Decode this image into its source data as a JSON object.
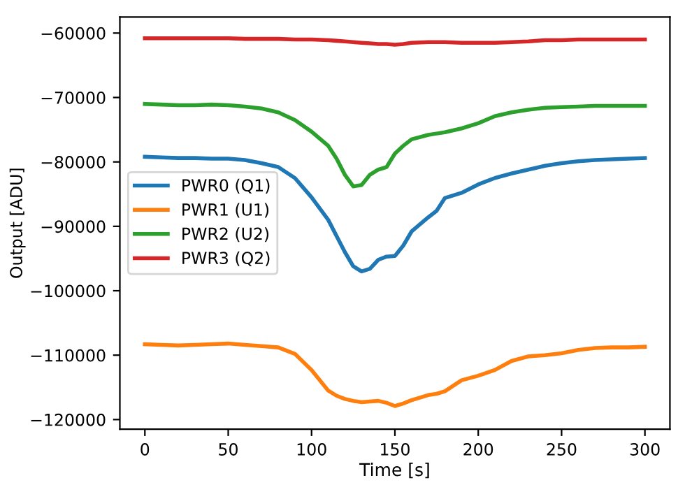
{
  "chart_data": {
    "type": "line",
    "xlabel": "Time [s]",
    "ylabel": "Output [ADU]",
    "x": [
      0,
      10,
      20,
      30,
      40,
      50,
      60,
      70,
      80,
      90,
      100,
      110,
      115,
      120,
      125,
      130,
      135,
      140,
      145,
      150,
      155,
      160,
      170,
      175,
      180,
      190,
      200,
      210,
      220,
      230,
      240,
      250,
      260,
      270,
      280,
      290,
      300
    ],
    "series": [
      {
        "name": "PWR0 (Q1)",
        "color": "#1f77b4",
        "values": [
          -79200,
          -79300,
          -79400,
          -79400,
          -79500,
          -79500,
          -79700,
          -80200,
          -80800,
          -82500,
          -85500,
          -89000,
          -91500,
          -94000,
          -96200,
          -97000,
          -96600,
          -95200,
          -94700,
          -94600,
          -93000,
          -90800,
          -88600,
          -87600,
          -85600,
          -84800,
          -83500,
          -82500,
          -81800,
          -81200,
          -80600,
          -80200,
          -79900,
          -79700,
          -79600,
          -79500,
          -79400
        ]
      },
      {
        "name": "PWR1 (U1)",
        "color": "#ff7f0e",
        "values": [
          -108300,
          -108400,
          -108500,
          -108400,
          -108300,
          -108200,
          -108400,
          -108600,
          -108800,
          -109800,
          -112300,
          -115500,
          -116300,
          -116800,
          -117100,
          -117300,
          -117200,
          -117100,
          -117400,
          -117900,
          -117500,
          -117000,
          -116200,
          -116000,
          -115600,
          -113900,
          -113200,
          -112300,
          -110900,
          -110200,
          -110000,
          -109700,
          -109200,
          -108900,
          -108800,
          -108800,
          -108700
        ]
      },
      {
        "name": "PWR2 (U2)",
        "color": "#2ca02c",
        "values": [
          -71000,
          -71100,
          -71200,
          -71200,
          -71100,
          -71200,
          -71400,
          -71700,
          -72300,
          -73500,
          -75300,
          -77500,
          -79500,
          -82000,
          -83800,
          -83600,
          -82000,
          -81200,
          -80800,
          -78700,
          -77500,
          -76500,
          -75800,
          -75600,
          -75400,
          -74800,
          -74000,
          -72900,
          -72300,
          -71900,
          -71600,
          -71500,
          -71400,
          -71300,
          -71300,
          -71300,
          -71300
        ]
      },
      {
        "name": "PWR3 (Q2)",
        "color": "#d62728",
        "values": [
          -60800,
          -60800,
          -60800,
          -60800,
          -60800,
          -60800,
          -60900,
          -60900,
          -60900,
          -61000,
          -61000,
          -61100,
          -61200,
          -61300,
          -61400,
          -61500,
          -61600,
          -61700,
          -61700,
          -61800,
          -61700,
          -61500,
          -61400,
          -61400,
          -61400,
          -61500,
          -61500,
          -61500,
          -61400,
          -61300,
          -61100,
          -61100,
          -61000,
          -61000,
          -61000,
          -61000,
          -61000
        ]
      }
    ],
    "xlim": [
      -15,
      315
    ],
    "ylim": [
      -121500,
      -57500
    ],
    "xticks": [
      0,
      50,
      100,
      150,
      200,
      250,
      300
    ],
    "yticks": [
      {
        "value": -60000,
        "label": "−60000"
      },
      {
        "value": -70000,
        "label": "−70000"
      },
      {
        "value": -80000,
        "label": "−80000"
      },
      {
        "value": -90000,
        "label": "−90000"
      },
      {
        "value": -100000,
        "label": "−100000"
      },
      {
        "value": -110000,
        "label": "−110000"
      },
      {
        "value": -120000,
        "label": "−120000"
      }
    ],
    "legend": "center left",
    "grid": false
  }
}
